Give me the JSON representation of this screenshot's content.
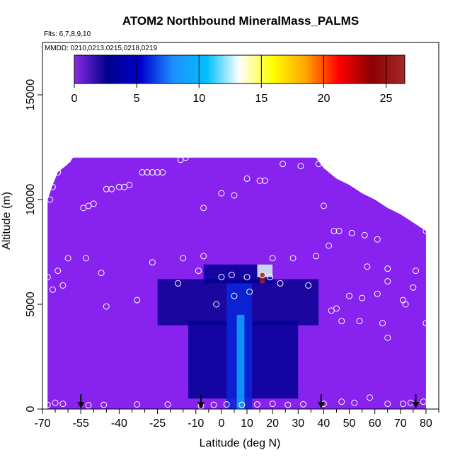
{
  "chart_data": {
    "type": "heatmap",
    "title": "ATOM2 Northbound MineralMass_PALMS",
    "subtitle_flights": "Flts: 6,7,8,9,10",
    "subtitle_dates": "MMDD: 0210,0213,0215,0218,0219",
    "xlabel": "Latitude (deg N)",
    "ylabel": "Altitude (m)",
    "xlim": [
      -70,
      85
    ],
    "ylim": [
      0,
      17500
    ],
    "x_ticks": [
      -70,
      -55,
      -40,
      -25,
      -10,
      0,
      10,
      20,
      30,
      40,
      50,
      60,
      70,
      80
    ],
    "x_tick_labels": [
      "-70",
      "-55",
      "-40",
      "-25",
      "-10",
      "0",
      "10",
      "20",
      "30",
      "40",
      "50",
      "60",
      "70",
      "80"
    ],
    "y_ticks": [
      0,
      5000,
      10000,
      15000
    ],
    "y_tick_labels": [
      "0",
      "5000",
      "10000",
      "15000"
    ],
    "colorbar": {
      "min": 0,
      "max": 26.5,
      "ticks": [
        0,
        5,
        10,
        15,
        20,
        25
      ],
      "tick_labels": [
        "0",
        "5",
        "10",
        "15",
        "20",
        "25"
      ],
      "colors": [
        "#8a2be2",
        "#00008b",
        "#0000cd",
        "#1e90ff",
        "#00bfff",
        "#ffffff",
        "#ffff00",
        "#ffa500",
        "#ff0000",
        "#8b0000",
        "#a52a2a"
      ]
    },
    "background_value": 0,
    "background_color": "#8822ee",
    "domain_top_profile": [
      {
        "lat": -68,
        "alt": 10000
      },
      {
        "lat": -66,
        "alt": 10700
      },
      {
        "lat": -64,
        "alt": 11300
      },
      {
        "lat": -60,
        "alt": 11700
      },
      {
        "lat": -58,
        "alt": 12000
      },
      {
        "lat": 37,
        "alt": 12000
      },
      {
        "lat": 40,
        "alt": 11500
      },
      {
        "lat": 45,
        "alt": 11000
      },
      {
        "lat": 50,
        "alt": 10700
      },
      {
        "lat": 55,
        "alt": 10300
      },
      {
        "lat": 60,
        "alt": 10000
      },
      {
        "lat": 65,
        "alt": 9600
      },
      {
        "lat": 70,
        "alt": 9300
      },
      {
        "lat": 75,
        "alt": 8900
      },
      {
        "lat": 80,
        "alt": 8500
      }
    ],
    "enhanced_regions": [
      {
        "lat_min": -25,
        "lat_max": 38,
        "alt_min": 4000,
        "alt_max": 6200,
        "value": 2.5
      },
      {
        "lat_min": -13,
        "lat_max": 30,
        "alt_min": 500,
        "alt_max": 4200,
        "value": 3
      },
      {
        "lat_min": -7,
        "lat_max": 20,
        "alt_min": 6000,
        "alt_max": 6900,
        "value": 3
      },
      {
        "lat_min": 2,
        "lat_max": 12,
        "alt_min": 0,
        "alt_max": 6000,
        "value": 6
      },
      {
        "lat_min": 6,
        "lat_max": 9,
        "alt_min": 0,
        "alt_max": 4500,
        "value": 9
      },
      {
        "lat_min": 14,
        "lat_max": 20,
        "alt_min": 6300,
        "alt_max": 6900,
        "value": 13
      },
      {
        "lat_min": 15,
        "lat_max": 17,
        "alt_min": 6000,
        "alt_max": 6500,
        "value": 26
      }
    ],
    "sample_points": [
      [
        -68,
        200
      ],
      [
        -65,
        300
      ],
      [
        -62,
        250
      ],
      [
        -52,
        180
      ],
      [
        -46,
        200
      ],
      [
        -33,
        220
      ],
      [
        -21,
        220
      ],
      [
        -8,
        150
      ],
      [
        -3,
        200
      ],
      [
        2,
        220
      ],
      [
        8,
        200
      ],
      [
        14,
        220
      ],
      [
        20,
        250
      ],
      [
        26,
        200
      ],
      [
        32,
        230
      ],
      [
        40,
        250
      ],
      [
        47,
        350
      ],
      [
        52,
        300
      ],
      [
        58,
        550
      ],
      [
        65,
        250
      ],
      [
        71,
        250
      ],
      [
        74,
        300
      ],
      [
        79,
        350
      ],
      [
        -68,
        6300
      ],
      [
        -66,
        5700
      ],
      [
        -64,
        6600
      ],
      [
        -62,
        5900
      ],
      [
        -60,
        7200
      ],
      [
        -53,
        7200
      ],
      [
        -47,
        6500
      ],
      [
        -45,
        4900
      ],
      [
        -33,
        5200
      ],
      [
        -27,
        7000
      ],
      [
        -17,
        6000
      ],
      [
        -15,
        7200
      ],
      [
        -9,
        6600
      ],
      [
        -7,
        7300
      ],
      [
        -2,
        5000
      ],
      [
        0,
        6300
      ],
      [
        4,
        6400
      ],
      [
        5,
        5400
      ],
      [
        10,
        6300
      ],
      [
        11,
        5600
      ],
      [
        16,
        6400
      ],
      [
        19,
        6300
      ],
      [
        20,
        7200
      ],
      [
        23,
        6000
      ],
      [
        28,
        7200
      ],
      [
        34,
        5900
      ],
      [
        37,
        7300
      ],
      [
        43,
        4700
      ],
      [
        45,
        4800
      ],
      [
        47,
        4200
      ],
      [
        50,
        5400
      ],
      [
        54,
        4200
      ],
      [
        55,
        5300
      ],
      [
        57,
        6800
      ],
      [
        61,
        5500
      ],
      [
        63,
        4100
      ],
      [
        65,
        3400
      ],
      [
        65,
        6100
      ],
      [
        65,
        6700
      ],
      [
        71,
        5200
      ],
      [
        72,
        5000
      ],
      [
        75,
        5800
      ],
      [
        76,
        6600
      ],
      [
        80,
        4100
      ],
      [
        -67,
        10000
      ],
      [
        -66,
        10600
      ],
      [
        -64,
        11300
      ],
      [
        -62,
        11700
      ],
      [
        -60,
        11900
      ],
      [
        -54,
        9600
      ],
      [
        -52,
        9700
      ],
      [
        -50,
        9800
      ],
      [
        -45,
        10500
      ],
      [
        -43,
        10500
      ],
      [
        -40,
        10600
      ],
      [
        -38,
        10600
      ],
      [
        -36,
        10700
      ],
      [
        -31,
        11300
      ],
      [
        -29,
        11300
      ],
      [
        -27,
        11300
      ],
      [
        -25,
        11300
      ],
      [
        -23,
        11300
      ],
      [
        -16,
        11900
      ],
      [
        -14,
        12000
      ],
      [
        -7,
        9600
      ],
      [
        0,
        10300
      ],
      [
        5,
        10200
      ],
      [
        10,
        11000
      ],
      [
        15,
        10900
      ],
      [
        17,
        10900
      ],
      [
        24,
        11700
      ],
      [
        31,
        11600
      ],
      [
        38,
        11700
      ],
      [
        40,
        9700
      ],
      [
        42,
        7800
      ],
      [
        44,
        8500
      ],
      [
        46,
        8500
      ],
      [
        51,
        8400
      ],
      [
        56,
        8300
      ],
      [
        61,
        8100
      ],
      [
        71,
        9400
      ],
      [
        74,
        9400
      ],
      [
        80,
        8500
      ]
    ],
    "arrows_at_surface_lat": [
      -55,
      -8,
      39,
      76
    ]
  }
}
